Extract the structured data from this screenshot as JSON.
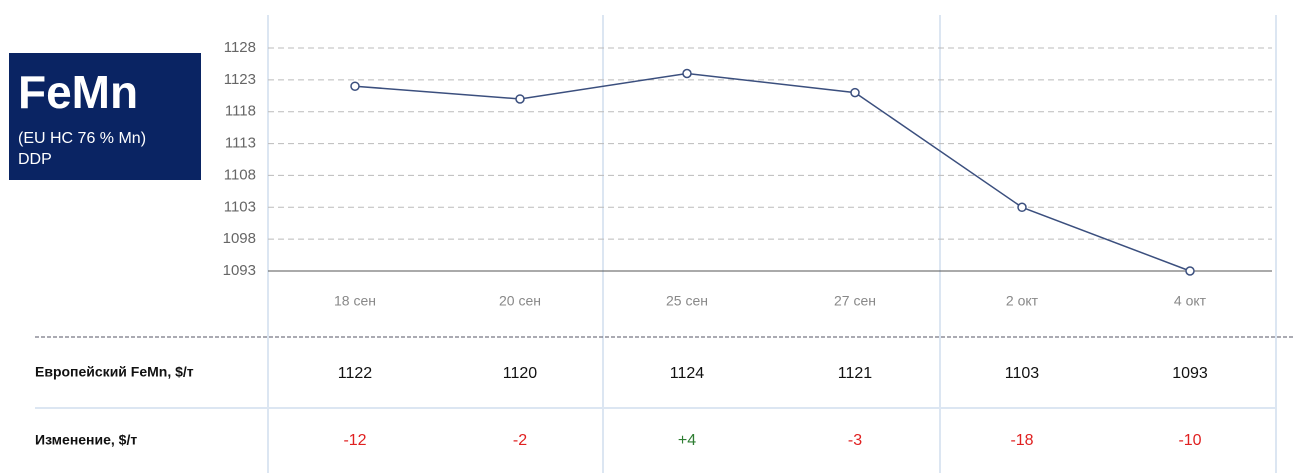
{
  "chart_data": {
    "type": "line",
    "title": "FeMn",
    "subtitle_lines": [
      "(EU HC 76 % Mn)",
      "DDP"
    ],
    "categories": [
      "18 сен",
      "20 сен",
      "25 сен",
      "27 сен",
      "2 окт",
      "4 окт"
    ],
    "series": [
      {
        "name": "Европейский FeMn, $/т",
        "color": "#3b4f7e",
        "values": [
          1122,
          1120,
          1124,
          1121,
          1103,
          1093
        ]
      }
    ],
    "changes": {
      "name": "Изменение, $/т",
      "values": [
        -12,
        -2,
        4,
        -3,
        -18,
        -10
      ],
      "value_labels": [
        "-12",
        "-2",
        "+4",
        "-3",
        "-18",
        "-10"
      ],
      "up_color": "#2e7d32",
      "down_color": "#e02020"
    },
    "ylim": [
      1093,
      1128
    ],
    "yticks": [
      1093,
      1098,
      1103,
      1108,
      1113,
      1118,
      1123,
      1128
    ],
    "grid": true
  }
}
